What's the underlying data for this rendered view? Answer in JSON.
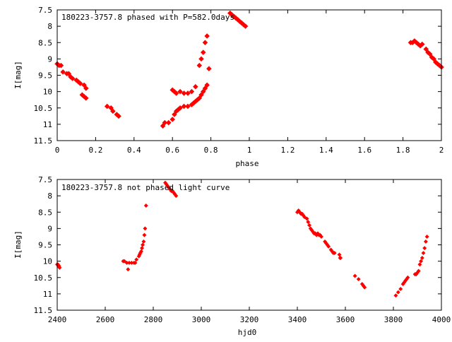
{
  "chart_data": [
    {
      "type": "scatter",
      "title": "180223-3757.8 phased with P=582.0d",
      "title_suffix": "ays",
      "xlabel": "phase",
      "ylabel": "I[mag]",
      "xlim": [
        0,
        2
      ],
      "ylim": [
        7.5,
        11.5
      ],
      "y_inverted": true,
      "x_ticks": [
        "0",
        "0.2",
        "0.4",
        "0.6",
        "0.8",
        "1",
        "1.2",
        "1.4",
        "1.6",
        "1.8",
        "2"
      ],
      "y_ticks": [
        "7.5",
        "8",
        "8.5",
        "9",
        "9.5",
        "10",
        "10.5",
        "11",
        "11.5"
      ],
      "grid": false,
      "marker_color": "#ff0000",
      "series": [
        {
          "x": [
            0.0,
            0.01,
            0.02,
            0.03,
            0.05,
            0.06,
            0.07,
            0.08,
            0.1,
            0.11,
            0.12,
            0.13,
            0.14,
            0.14,
            0.15,
            0.15,
            0.26,
            0.28,
            0.29,
            0.31,
            0.32,
            0.55,
            0.56,
            0.58,
            0.6,
            0.61,
            0.62,
            0.63,
            0.64,
            0.66,
            0.68,
            0.7,
            0.71,
            0.72,
            0.73,
            0.74,
            0.75,
            0.76,
            0.77,
            0.78,
            0.6,
            0.61,
            0.62,
            0.64,
            0.66,
            0.68,
            0.7,
            0.72,
            0.74,
            0.75,
            0.76,
            0.77,
            0.78,
            0.79,
            0.9,
            0.91,
            0.92,
            0.93,
            0.94,
            0.95,
            0.96,
            0.97,
            0.98,
            1.84,
            1.85,
            1.86,
            1.87,
            1.88,
            1.89,
            1.9,
            1.92,
            1.93,
            1.94,
            1.95,
            1.96,
            1.97,
            1.98,
            1.99,
            2.0
          ],
          "y": [
            9.15,
            9.2,
            9.2,
            9.4,
            9.45,
            9.45,
            9.55,
            9.6,
            9.65,
            9.7,
            9.75,
            10.1,
            10.15,
            9.8,
            9.9,
            10.2,
            10.45,
            10.5,
            10.6,
            10.7,
            10.75,
            11.05,
            10.95,
            10.95,
            10.85,
            10.7,
            10.6,
            10.55,
            10.5,
            10.45,
            10.45,
            10.4,
            10.35,
            10.3,
            10.25,
            10.2,
            10.1,
            10.0,
            9.9,
            9.8,
            9.95,
            10.0,
            10.05,
            10.0,
            10.05,
            10.05,
            10.0,
            9.85,
            9.2,
            9.0,
            8.8,
            8.5,
            8.3,
            9.3,
            7.6,
            7.65,
            7.7,
            7.75,
            7.8,
            7.85,
            7.9,
            7.95,
            8.0,
            8.5,
            8.5,
            8.45,
            8.5,
            8.55,
            8.6,
            8.55,
            8.7,
            8.8,
            8.85,
            8.95,
            9.0,
            9.1,
            9.15,
            9.2,
            9.25
          ]
        }
      ]
    },
    {
      "type": "scatter",
      "title": "180223-3757.8 not phased light curve",
      "xlabel": "hjd0",
      "ylabel": "I[mag]",
      "xlim": [
        2400,
        4000
      ],
      "ylim": [
        7.5,
        11.5
      ],
      "y_inverted": true,
      "x_ticks": [
        "2400",
        "2600",
        "2800",
        "3000",
        "3200",
        "3400",
        "3600",
        "3800",
        "4000"
      ],
      "y_ticks": [
        "7.5",
        "8",
        "8.5",
        "9",
        "9.5",
        "10",
        "10.5",
        "11",
        "11.5"
      ],
      "grid": false,
      "marker_color": "#ff0000",
      "series": [
        {
          "x": [
            2400,
            2403,
            2405,
            2408,
            2410,
            2675,
            2680,
            2690,
            2695,
            2700,
            2710,
            2720,
            2725,
            2730,
            2740,
            2743,
            2746,
            2750,
            2753,
            2756,
            2760,
            2763,
            2766,
            2770,
            2850,
            2855,
            2860,
            2865,
            2870,
            2875,
            2880,
            2885,
            2890,
            2895,
            3400,
            3405,
            3410,
            3415,
            3420,
            3425,
            3430,
            3440,
            3445,
            3450,
            3455,
            3460,
            3465,
            3470,
            3475,
            3480,
            3485,
            3490,
            3495,
            3500,
            3515,
            3520,
            3525,
            3530,
            3540,
            3545,
            3550,
            3555,
            3575,
            3578,
            3580,
            3640,
            3655,
            3670,
            3675,
            3680,
            3810,
            3820,
            3830,
            3840,
            3845,
            3850,
            3855,
            3860,
            3890,
            3895,
            3900,
            3905,
            3910,
            3915,
            3920,
            3925,
            3930,
            3935,
            3940
          ],
          "y": [
            10.1,
            10.1,
            10.15,
            10.15,
            10.2,
            10.0,
            10.0,
            10.05,
            10.25,
            10.05,
            10.05,
            10.05,
            10.05,
            9.95,
            9.85,
            9.8,
            9.75,
            9.7,
            9.6,
            9.5,
            9.4,
            9.2,
            9.0,
            8.3,
            7.6,
            7.65,
            7.7,
            7.75,
            7.8,
            7.85,
            7.85,
            7.9,
            7.95,
            8.0,
            8.5,
            8.45,
            8.5,
            8.55,
            8.55,
            8.6,
            8.65,
            8.7,
            8.8,
            8.9,
            9.0,
            9.05,
            9.1,
            9.15,
            9.15,
            9.2,
            9.15,
            9.2,
            9.2,
            9.25,
            9.4,
            9.45,
            9.5,
            9.55,
            9.65,
            9.7,
            9.75,
            9.75,
            9.8,
            9.9,
            9.9,
            10.45,
            10.55,
            10.7,
            10.75,
            10.8,
            11.05,
            10.95,
            10.85,
            10.7,
            10.65,
            10.6,
            10.55,
            10.5,
            10.4,
            10.4,
            10.35,
            10.3,
            10.1,
            10.0,
            9.9,
            9.75,
            9.6,
            9.4,
            9.25
          ]
        }
      ]
    }
  ]
}
